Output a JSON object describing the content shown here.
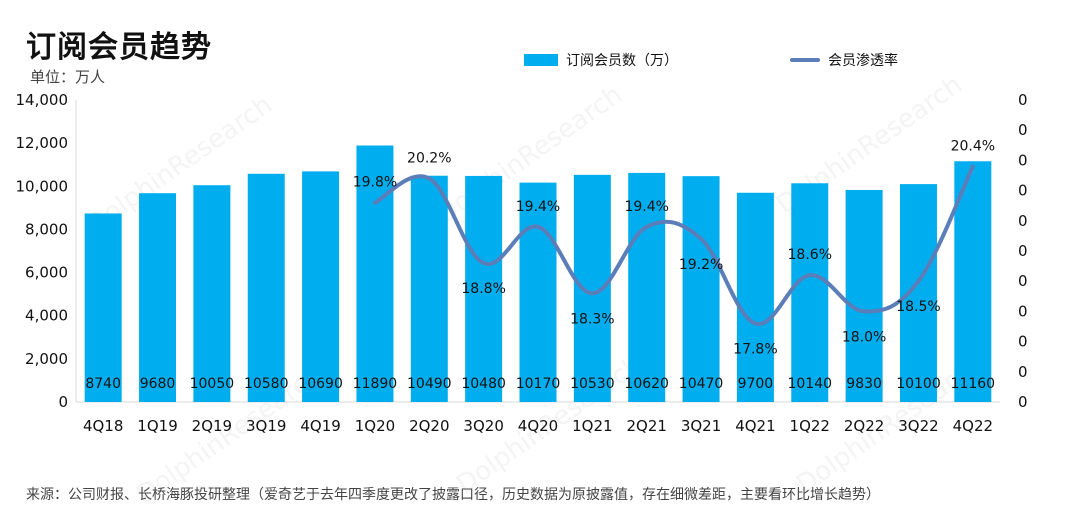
{
  "title": "订阅会员趋势",
  "unit_label": "单位：万人",
  "source_note": "来源：公司财报、长桥海豚投研整理（爱奇艺于去年四季度更改了披露口径，历史数据为原披露值，存在细微差距，主要看环比增长趋势）",
  "watermark": "DolphinResearch",
  "colors": {
    "bar": "#00AEEF",
    "line": "#5B7DB8",
    "text": "#111111"
  },
  "chart_data": {
    "type": "bar",
    "categories": [
      "4Q18",
      "1Q19",
      "2Q19",
      "3Q19",
      "4Q19",
      "1Q20",
      "2Q20",
      "3Q20",
      "4Q20",
      "1Q21",
      "2Q21",
      "3Q21",
      "4Q21",
      "1Q22",
      "2Q22",
      "3Q22",
      "4Q22"
    ],
    "series": [
      {
        "name": "订阅会员数（万）",
        "type": "bar",
        "axis": "left",
        "values": [
          8740,
          9680,
          10050,
          10580,
          10690,
          11890,
          10490,
          10480,
          10170,
          10530,
          10620,
          10470,
          9700,
          10140,
          9830,
          10100,
          11160
        ],
        "labels": [
          "8740",
          "9680",
          "10050",
          "10580",
          "10690",
          "11890",
          "10490",
          "10480",
          "10170",
          "10530",
          "10620",
          "10470",
          "9700",
          "10140",
          "9830",
          "10100",
          "11160"
        ]
      },
      {
        "name": "会员渗透率",
        "type": "line",
        "axis": "right",
        "values": [
          null,
          null,
          null,
          null,
          null,
          19.8,
          20.2,
          18.8,
          19.4,
          18.3,
          19.4,
          19.2,
          17.8,
          18.6,
          18.0,
          18.5,
          20.4
        ],
        "labels": [
          "",
          "",
          "",
          "",
          "",
          "19.8%",
          "20.2%",
          "18.8%",
          "19.4%",
          "18.3%",
          "19.4%",
          "19.2%",
          "17.8%",
          "18.6%",
          "18.0%",
          "18.5%",
          "20.4%"
        ]
      }
    ],
    "yticks_left": [
      "0",
      "2,000",
      "4,000",
      "6,000",
      "8,000",
      "10,000",
      "12,000",
      "14,000"
    ],
    "yticks_right": [
      "0",
      "0",
      "0",
      "0",
      "0",
      "0",
      "0",
      "0",
      "0",
      "0",
      "0"
    ],
    "ylim": [
      0,
      14000
    ],
    "y2lim": [
      16.5,
      21.5
    ],
    "grid": false,
    "legend_position": "top"
  }
}
